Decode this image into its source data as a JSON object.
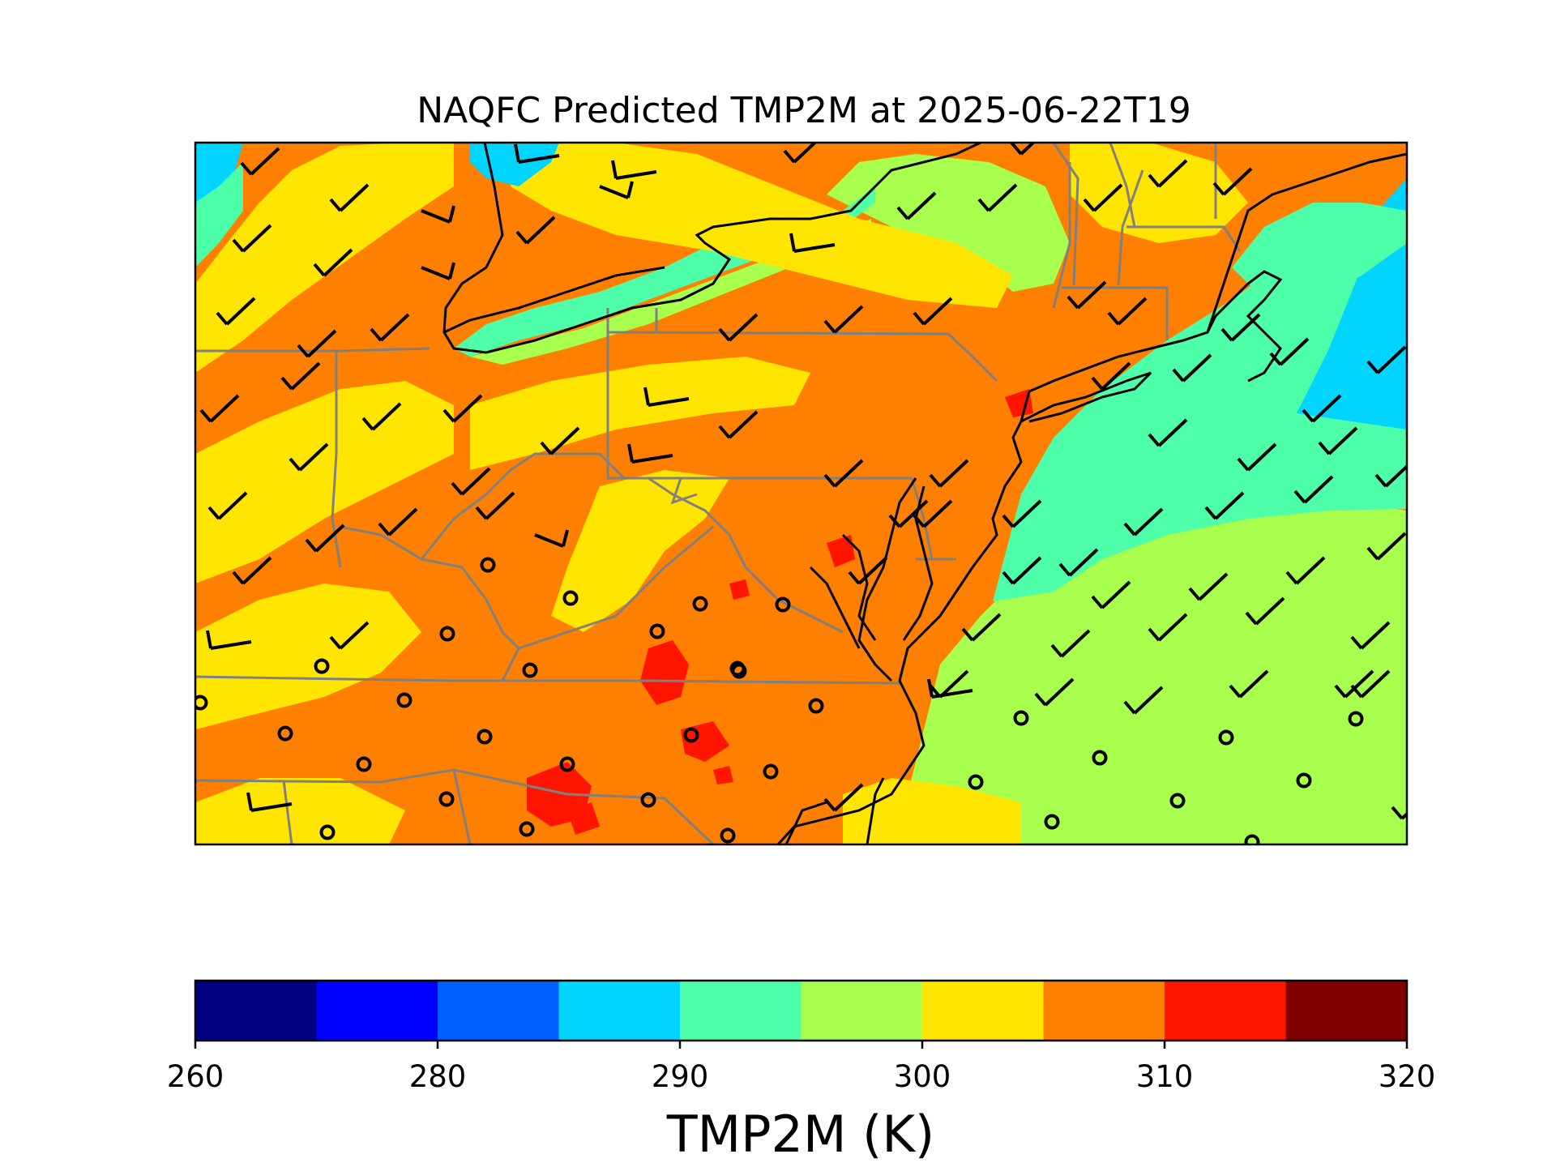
{
  "map": {
    "title": "NAQFC Predicted TMP2M at 2025-06-22T19",
    "variable": "TMP2M",
    "units": "K",
    "region": "Mid-Atlantic / Northeast United States",
    "legend": "colorbar bottom"
  },
  "colorbar": {
    "label": "TMP2M (K)",
    "boundaries": [
      260,
      265,
      280,
      285,
      290,
      295,
      300,
      305,
      310,
      315,
      320
    ],
    "colors": [
      "#000080",
      "#0000ff",
      "#0060ff",
      "#00d4ff",
      "#4dffa9",
      "#a9ff4d",
      "#ffe500",
      "#ff7f00",
      "#ff1500",
      "#800000"
    ],
    "tick_labels": [
      "260",
      "280",
      "290",
      "300",
      "310",
      "320"
    ]
  },
  "symbols": {
    "wind_barb": "black wind barb",
    "calm": "calm-wind circle"
  }
}
